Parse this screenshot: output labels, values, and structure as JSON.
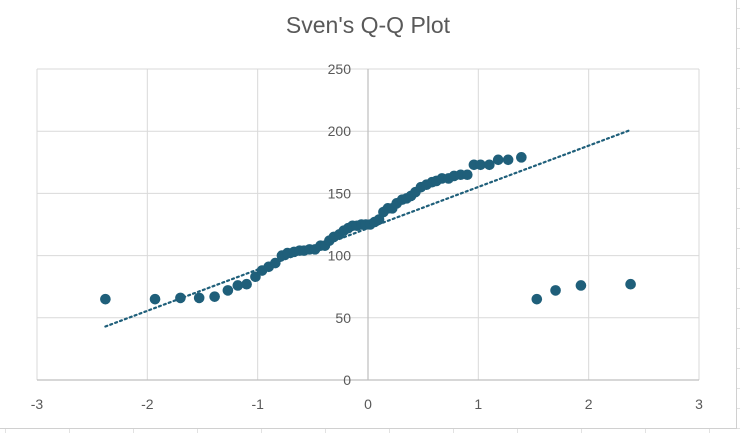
{
  "chart_data": {
    "type": "scatter",
    "title": "Sven's Q-Q Plot",
    "xlabel": "",
    "ylabel": "",
    "xlim": [
      -3,
      3
    ],
    "ylim": [
      0,
      250
    ],
    "x_ticks": [
      "-3",
      "-2",
      "-1",
      "0",
      "1",
      "2",
      "3"
    ],
    "y_ticks": [
      "0",
      "50",
      "100",
      "150",
      "200",
      "250"
    ],
    "grid": true,
    "marker_color": "#1f5f7a",
    "trendline_color": "#1f5f7a",
    "trendline": {
      "style": "dotted",
      "x": [
        -2.38,
        2.38
      ],
      "y": [
        43,
        201
      ]
    },
    "series": [
      {
        "x": [
          -2.38,
          -1.93,
          -1.7,
          -1.53,
          -1.39,
          -1.27,
          -1.18,
          -1.1,
          -1.02,
          -0.96,
          -0.9,
          -0.84,
          -0.78,
          -0.73,
          -0.67,
          -0.62,
          -0.58,
          -0.53,
          -0.48,
          -0.43,
          -0.39,
          -0.35,
          -0.31,
          -0.26,
          -0.22,
          -0.18,
          -0.14,
          -0.1,
          -0.06,
          -0.02,
          0.02,
          0.06,
          0.1,
          0.14,
          0.18,
          0.22,
          0.26,
          0.31,
          0.35,
          0.39,
          0.43,
          0.48,
          0.53,
          0.58,
          0.62,
          0.67,
          0.73,
          0.78,
          0.84,
          0.9,
          0.96,
          1.02,
          1.1,
          1.18,
          1.27,
          1.39,
          1.53,
          1.7,
          1.93,
          2.38
        ],
        "y": [
          65,
          65,
          66,
          66,
          67,
          72,
          76,
          77,
          83,
          88,
          91,
          94,
          100,
          102,
          103,
          104,
          104,
          105,
          105,
          108,
          108,
          112,
          115,
          117,
          120,
          122,
          124,
          124,
          125,
          125,
          125,
          127,
          129,
          135,
          138,
          138,
          142,
          145,
          146,
          148,
          151,
          155,
          157,
          159,
          160,
          162,
          162,
          164,
          165,
          165,
          173,
          173,
          173,
          177,
          177,
          179,
          65,
          72,
          76,
          77
        ]
      }
    ]
  }
}
